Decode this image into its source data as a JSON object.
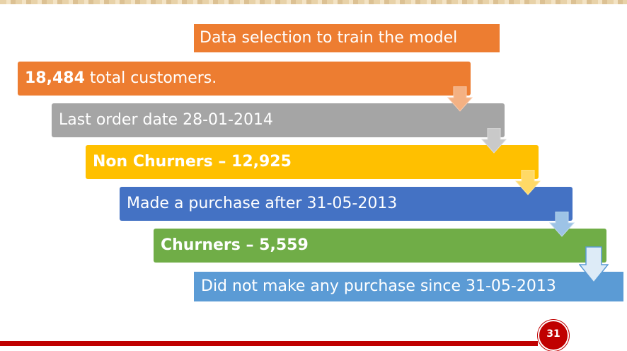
{
  "title": "Data selection to train the model",
  "steps": [
    {
      "bold": "18,484",
      "text": " total customers.",
      "color": "#ed7d31"
    },
    {
      "bold": "",
      "text": "Last order date 28-01-2014",
      "color": "#a5a5a5"
    },
    {
      "bold": "",
      "text": "Non Churners – 12,925",
      "color": "#ffc000"
    },
    {
      "bold": "",
      "text": "Made a purchase after 31-05-2013",
      "color": "#4472c4"
    },
    {
      "bold": "",
      "text": "Churners – 5,559",
      "color": "#70ad47"
    },
    {
      "bold": "",
      "text": "Did not make any purchase since 31-05-2013",
      "color": "#5b9bd5"
    }
  ],
  "arrow_icon": "down-arrow-icon",
  "page_number": "31",
  "accent_color": "#c00000"
}
